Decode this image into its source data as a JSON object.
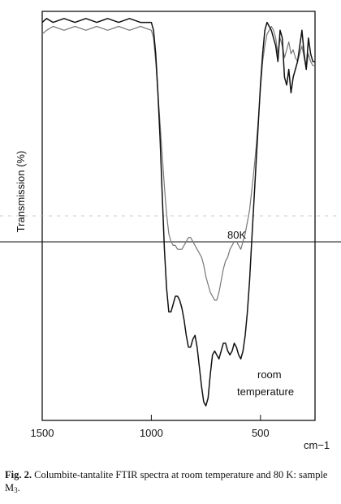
{
  "caption": {
    "figure_number": "Fig. 2.",
    "text": " Columbite-tantalite FTIR spectra at room temperature and 80 K: sample M",
    "subscript": "3",
    "end": "."
  },
  "chart_data": {
    "type": "line",
    "title": "",
    "ylabel": "Transmission (%)",
    "xunit": "cm−1",
    "xlim": [
      1500,
      250
    ],
    "ylim": [
      0,
      100
    ],
    "xticks": [
      1500,
      1000,
      500
    ],
    "grid": false,
    "annotations": [
      "80K",
      "room",
      "temperature"
    ],
    "series": [
      {
        "name": "80K",
        "color": "#777777",
        "x": [
          1500,
          1480,
          1450,
          1400,
          1350,
          1300,
          1250,
          1200,
          1150,
          1100,
          1050,
          1000,
          990,
          980,
          970,
          960,
          950,
          940,
          930,
          920,
          910,
          900,
          890,
          880,
          870,
          860,
          850,
          840,
          830,
          820,
          810,
          800,
          790,
          780,
          770,
          760,
          750,
          740,
          730,
          720,
          710,
          700,
          690,
          680,
          670,
          660,
          650,
          640,
          630,
          620,
          610,
          600,
          590,
          580,
          570,
          560,
          550,
          540,
          530,
          520,
          510,
          500,
          490,
          480,
          470,
          460,
          450,
          440,
          430,
          420,
          410,
          400,
          390,
          380,
          370,
          360,
          350,
          340,
          330,
          320,
          310,
          300,
          290,
          280,
          270,
          260,
          250
        ],
        "y": [
          95,
          96,
          97,
          96,
          97,
          96,
          97,
          96,
          97,
          96,
          97,
          96,
          94,
          88,
          80,
          72,
          64,
          56,
          49,
          44,
          42,
          41,
          41,
          40,
          40,
          40,
          41,
          42,
          43,
          43,
          42,
          41,
          40,
          39,
          38,
          36,
          33,
          31,
          29,
          28,
          27,
          27,
          29,
          32,
          35,
          37,
          38,
          40,
          41,
          42,
          42,
          41,
          40,
          42,
          44,
          47,
          50,
          55,
          60,
          66,
          73,
          81,
          88,
          92,
          95,
          96,
          97,
          96,
          94,
          90,
          94,
          92,
          89,
          91,
          93,
          90,
          91,
          89,
          88,
          90,
          92,
          89,
          86,
          90,
          88,
          87,
          87
        ]
      },
      {
        "name": "room temperature",
        "color": "#111111",
        "x": [
          1500,
          1480,
          1450,
          1400,
          1350,
          1300,
          1250,
          1200,
          1150,
          1100,
          1050,
          1000,
          990,
          980,
          970,
          960,
          950,
          940,
          930,
          920,
          910,
          900,
          890,
          880,
          870,
          860,
          850,
          840,
          830,
          820,
          810,
          800,
          790,
          780,
          770,
          760,
          750,
          740,
          730,
          720,
          710,
          700,
          690,
          680,
          670,
          660,
          650,
          640,
          630,
          620,
          610,
          600,
          590,
          580,
          570,
          560,
          550,
          540,
          530,
          520,
          510,
          500,
          490,
          480,
          470,
          460,
          450,
          440,
          430,
          420,
          410,
          400,
          390,
          380,
          370,
          360,
          350,
          340,
          330,
          320,
          310,
          300,
          290,
          280,
          270,
          260,
          250
        ],
        "y": [
          98,
          99,
          98,
          99,
          98,
          99,
          98,
          99,
          98,
          99,
          98,
          98,
          96,
          90,
          80,
          68,
          54,
          40,
          30,
          24,
          24,
          26,
          28,
          28,
          27,
          25,
          22,
          18,
          15,
          15,
          17,
          18,
          15,
          10,
          5,
          1,
          0,
          2,
          8,
          13,
          14,
          13,
          12,
          14,
          16,
          16,
          14,
          13,
          14,
          16,
          15,
          13,
          12,
          14,
          18,
          24,
          32,
          42,
          52,
          62,
          72,
          82,
          90,
          96,
          98,
          97,
          96,
          94,
          92,
          88,
          96,
          94,
          84,
          82,
          86,
          80,
          84,
          86,
          88,
          92,
          96,
          90,
          86,
          94,
          90,
          88,
          88
        ]
      }
    ]
  }
}
